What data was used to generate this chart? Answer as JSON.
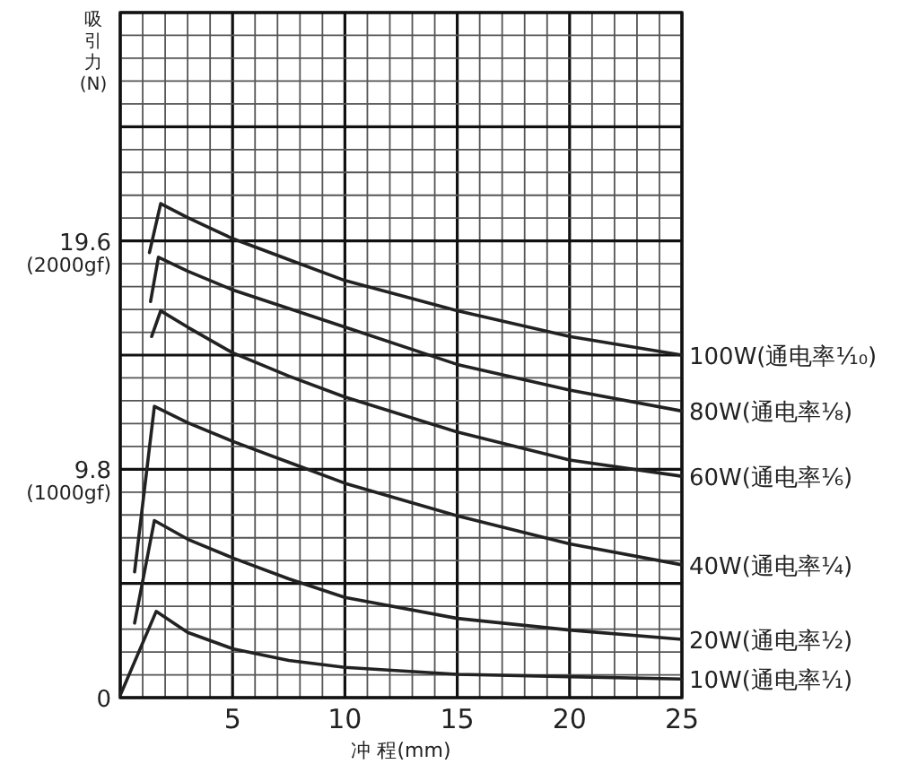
{
  "chart_data": {
    "type": "line",
    "xlabel": "冲 程(mm)",
    "ylabel": "吸引力(N)",
    "annotations": [
      "(1000gf)",
      "(2000gf)"
    ],
    "xlim": [
      0,
      25
    ],
    "ylim": [
      0,
      29.4
    ],
    "grid": true,
    "xticks": [
      {
        "value": 0,
        "label": null
      },
      {
        "value": 1,
        "label": null
      },
      {
        "value": 2,
        "label": null
      },
      {
        "value": 3,
        "label": null
      },
      {
        "value": 4,
        "label": null
      },
      5,
      {
        "value": 6,
        "label": null
      },
      {
        "value": 7,
        "label": null
      },
      {
        "value": 8,
        "label": null
      },
      {
        "value": 9,
        "label": null
      },
      10,
      {
        "value": 11,
        "label": null
      },
      {
        "value": 12,
        "label": null
      },
      {
        "value": 13,
        "label": null
      },
      {
        "value": 14,
        "label": null
      },
      15,
      {
        "value": 16,
        "label": null
      },
      {
        "value": 17,
        "label": null
      },
      {
        "value": 18,
        "label": null
      },
      {
        "value": 19,
        "label": null
      },
      20,
      {
        "value": 21,
        "label": null
      },
      {
        "value": 22,
        "label": null
      },
      {
        "value": 23,
        "label": null
      },
      {
        "value": 24,
        "label": null
      },
      25
    ],
    "yticks": [
      0,
      {
        "value": 0.98,
        "label": null
      },
      {
        "value": 1.96,
        "label": null
      },
      {
        "value": 2.94,
        "label": null
      },
      {
        "value": 3.92,
        "label": null
      },
      {
        "value": 4.9,
        "label": null
      },
      {
        "value": 5.88,
        "label": null
      },
      {
        "value": 6.86,
        "label": null
      },
      {
        "value": 7.84,
        "label": null
      },
      {
        "value": 8.82,
        "label": null
      },
      9.8,
      {
        "value": 10.78,
        "label": null
      },
      {
        "value": 11.76,
        "label": null
      },
      {
        "value": 12.74,
        "label": null
      },
      {
        "value": 13.72,
        "label": null
      },
      {
        "value": 14.7,
        "label": null
      },
      {
        "value": 15.68,
        "label": null
      },
      {
        "value": 16.66,
        "label": null
      },
      {
        "value": 17.64,
        "label": null
      },
      {
        "value": 18.62,
        "label": null
      },
      19.6,
      {
        "value": 20.58,
        "label": null
      },
      {
        "value": 21.56,
        "label": null
      },
      {
        "value": 22.54,
        "label": null
      },
      {
        "value": 23.52,
        "label": null
      },
      {
        "value": 24.5,
        "label": null
      },
      {
        "value": 25.48,
        "label": null
      },
      {
        "value": 26.46,
        "label": null
      },
      {
        "value": 27.44,
        "label": null
      },
      {
        "value": 28.42,
        "label": null
      },
      {
        "value": 29.4,
        "label": null
      }
    ],
    "series": [
      {
        "name": "100W(通电率¹⁄₁₀)",
        "color": "#222222",
        "x": [
          1.3,
          1.8,
          3,
          5,
          7.5,
          10,
          15,
          20,
          25
        ],
        "values": [
          19.1,
          21.2,
          20.6,
          19.7,
          18.8,
          17.9,
          16.6,
          15.5,
          14.7
        ]
      },
      {
        "name": "80W(通电率¹⁄₈)",
        "color": "#222222",
        "x": [
          1.35,
          1.7,
          3,
          5,
          7.5,
          10,
          15,
          20,
          25
        ],
        "values": [
          17.0,
          18.9,
          18.3,
          17.5,
          16.7,
          15.9,
          14.3,
          13.2,
          12.3
        ]
      },
      {
        "name": "60W(通电率¹⁄₆)",
        "color": "#222222",
        "x": [
          1.4,
          1.8,
          3,
          5,
          7.5,
          10,
          15,
          20,
          25
        ],
        "values": [
          15.5,
          16.6,
          15.9,
          14.8,
          13.8,
          12.9,
          11.4,
          10.2,
          9.5
        ]
      },
      {
        "name": "40W(通电率¹⁄₄)",
        "color": "#222222",
        "x": [
          0.64,
          1.52,
          3,
          5,
          7.5,
          10,
          15,
          20,
          25
        ],
        "values": [
          5.4,
          12.5,
          11.8,
          11.0,
          10.1,
          9.2,
          7.8,
          6.6,
          5.7
        ]
      },
      {
        "name": "20W(通电率¹⁄₂)",
        "color": "#222222",
        "x": [
          0.64,
          1.52,
          3,
          5,
          7.5,
          10,
          15,
          20,
          25
        ],
        "values": [
          3.2,
          7.6,
          6.8,
          6.0,
          5.1,
          4.3,
          3.4,
          2.9,
          2.5
        ]
      },
      {
        "name": "10W(通电率¹⁄₁)",
        "color": "#222222",
        "x": [
          0,
          1.6,
          3,
          5,
          7.5,
          10,
          15,
          20,
          25
        ],
        "values": [
          0.1,
          3.7,
          2.8,
          2.1,
          1.6,
          1.3,
          1.0,
          0.9,
          0.8
        ]
      }
    ]
  }
}
